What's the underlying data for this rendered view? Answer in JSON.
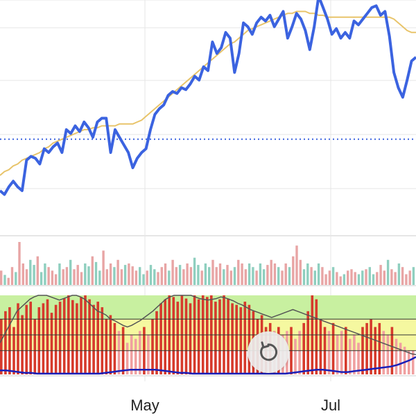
{
  "chart_data": [
    {
      "type": "line",
      "title": "",
      "x_ticks": [
        "May",
        "Jul"
      ],
      "series": [
        {
          "values": [
            50,
            48,
            52,
            55,
            52,
            50,
            66,
            68,
            67,
            64,
            72,
            70,
            73,
            75,
            70,
            82,
            80,
            84,
            81,
            86,
            83,
            78,
            86,
            88,
            88,
            70,
            82,
            78,
            74,
            70,
            62,
            67,
            70,
            72,
            82,
            90,
            93,
            95,
            100,
            102,
            101,
            104,
            103,
            106,
            110,
            108,
            115,
            113,
            128,
            122,
            125,
            133,
            130,
            112,
            122,
            138,
            136,
            132,
            138,
            141,
            139,
            142,
            136,
            140,
            144,
            130,
            136,
            143,
            140,
            134,
            124,
            136,
            152,
            146,
            140,
            132,
            135,
            130,
            133,
            130,
            139,
            137,
            140,
            143,
            146,
            147,
            142,
            144,
            131,
            112,
            104,
            99,
            108,
            118,
            120
          ]
        },
        {
          "values": [
            58,
            60,
            61,
            63,
            64,
            66,
            67,
            68,
            69,
            70,
            72,
            73,
            75,
            76,
            77,
            78,
            79,
            80,
            81,
            82,
            82,
            83,
            83,
            84,
            84,
            84,
            84,
            85,
            85,
            85,
            85,
            86,
            87,
            89,
            91,
            93,
            95,
            97,
            99,
            101,
            103,
            105,
            107,
            109,
            111,
            113,
            115,
            117,
            119,
            121,
            123,
            125,
            127,
            128,
            130,
            132,
            134,
            135,
            136,
            137,
            138,
            139,
            140,
            141,
            142,
            143,
            143,
            144,
            144,
            144,
            143,
            143,
            142,
            142,
            141,
            141,
            141,
            141,
            141,
            141,
            141,
            141,
            141,
            141,
            141,
            141,
            141,
            141,
            141,
            140,
            138,
            136,
            134,
            133,
            133
          ]
        }
      ],
      "ylim": [
        30,
        150
      ],
      "reference_line": 77,
      "colors": {
        "price": "#3b63e0",
        "average": "#e8c46a",
        "reference": "#3b63e0",
        "grid": "#e6e6e6"
      }
    },
    {
      "type": "bar",
      "series": [
        {
          "values": [
            20,
            14,
            10,
            25,
            18,
            60,
            30,
            22,
            35,
            28,
            40,
            18,
            30,
            25,
            20,
            15,
            30,
            22,
            25,
            35,
            22,
            28,
            18,
            30,
            26,
            40,
            32,
            20,
            48,
            22,
            30,
            25,
            35,
            22,
            28,
            30,
            26,
            20,
            25,
            15,
            20,
            28,
            22,
            18,
            25,
            30,
            20,
            35,
            25,
            28,
            22,
            30,
            25,
            38,
            28,
            20,
            30,
            25,
            35,
            25,
            30,
            22,
            28,
            20,
            25,
            35,
            30,
            22,
            30,
            25,
            20,
            30,
            22,
            28,
            35,
            30,
            25,
            20,
            30,
            25,
            40,
            55,
            35,
            22,
            30,
            25,
            20,
            30,
            25,
            15,
            20,
            25,
            18,
            12,
            15,
            20,
            22,
            18,
            15,
            20,
            22,
            25,
            15,
            18,
            28,
            20,
            35,
            22,
            18,
            30,
            25,
            15,
            20,
            25
          ]
        },
        {
          "colors": [
            "#e8a5a5",
            "#8fcfbf"
          ]
        }
      ]
    },
    {
      "type": "bar",
      "series": [
        {
          "values": [
            70,
            80,
            85,
            60,
            90,
            75,
            88,
            92,
            70,
            85,
            90,
            95,
            78,
            88,
            92,
            96,
            100,
            94,
            90,
            98,
            100,
            95,
            88,
            92,
            85,
            70,
            75,
            65,
            55,
            60,
            40,
            50,
            45,
            55,
            60,
            50,
            70,
            80,
            90,
            95,
            100,
            98,
            92,
            100,
            96,
            90,
            100,
            95,
            100,
            98,
            100,
            92,
            95,
            100,
            96,
            90,
            88,
            85,
            92,
            88,
            80,
            70,
            75,
            60,
            65,
            55,
            60,
            50,
            55,
            60,
            45,
            55,
            65,
            80,
            100,
            95,
            70,
            60,
            55,
            65,
            50,
            55,
            60,
            45,
            50,
            40,
            60,
            65,
            70,
            60,
            65,
            55,
            50,
            60,
            45,
            40,
            35,
            30,
            30
          ]
        },
        {
          "values": [
            40,
            50,
            60,
            70,
            80,
            85,
            90,
            95,
            98,
            100,
            100,
            100,
            98,
            96,
            94,
            96,
            98,
            100,
            100,
            98,
            95,
            90,
            85,
            80,
            78,
            75,
            70,
            68,
            65,
            62,
            60,
            62,
            65,
            68,
            72,
            76,
            80,
            85,
            90,
            95,
            98,
            100,
            100,
            100,
            100,
            100,
            98,
            96,
            95,
            94,
            95,
            96,
            98,
            97,
            95,
            93,
            90,
            88,
            85,
            82,
            80,
            78,
            76,
            74,
            72,
            74,
            76,
            78,
            80,
            82,
            80,
            78,
            76,
            74,
            72,
            70,
            68,
            66,
            64,
            62,
            60,
            58,
            56,
            54,
            52,
            50,
            48,
            46,
            44,
            42,
            40,
            38,
            36,
            34,
            32,
            30,
            28,
            26,
            25
          ]
        },
        {
          "values": [
            5,
            5,
            4,
            3,
            2,
            2,
            1,
            1,
            1,
            1,
            1,
            1,
            1,
            1,
            1,
            1,
            1,
            2,
            3,
            4,
            5,
            6,
            6,
            6,
            6,
            6,
            5,
            4,
            3,
            2,
            2,
            1,
            1,
            1,
            1,
            1,
            1,
            1,
            1,
            1,
            1,
            1,
            1,
            1,
            1,
            1,
            1,
            2,
            3,
            4,
            5,
            6,
            6,
            5,
            4,
            3,
            3,
            4,
            5,
            6,
            7,
            8,
            9,
            10,
            12,
            15,
            18,
            22
          ]
        }
      ],
      "ylim": [
        0,
        100
      ],
      "levels": [
        30,
        50,
        70
      ],
      "colors": {
        "bar": "#d63a2c",
        "bar_faded": "#f0a0a0",
        "band_top": "#c8f0a0",
        "band_mid": "#f5f8a0",
        "line_k": "#555555",
        "line_d": "#1a1fb8"
      }
    }
  ],
  "controls": {
    "reset_icon": "rotate-reset-icon"
  }
}
